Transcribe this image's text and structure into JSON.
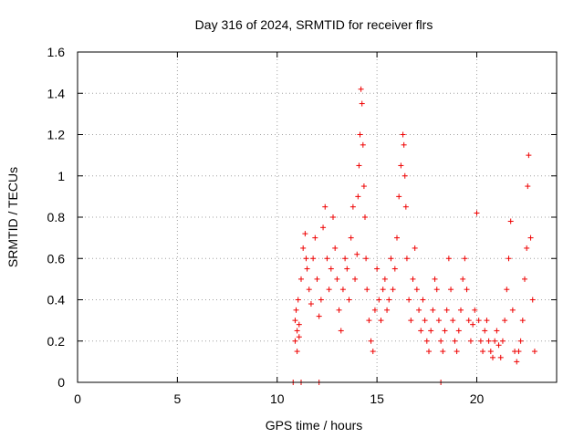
{
  "chart_data": {
    "type": "scatter",
    "title": "Day 316 of 2024, SRMTID for receiver flrs",
    "xlabel": "GPS time / hours",
    "ylabel": "SRMTID / TECUs",
    "xlim": [
      0,
      24
    ],
    "ylim": [
      0,
      1.6
    ],
    "xticks": [
      "0",
      "5",
      "10",
      "15",
      "20"
    ],
    "yticks": [
      "0",
      "0.2",
      "0.4",
      "0.6",
      "0.8",
      "1",
      "1.2",
      "1.4",
      "1.6"
    ],
    "grid": true,
    "marker": "plus",
    "color": "#ee0000",
    "series": [
      {
        "name": "SRMTID",
        "x": [
          10.8,
          11.2,
          12.1,
          18.2,
          10.9,
          10.9,
          11.0,
          11.0,
          11.1,
          10.95,
          11.05,
          11.1,
          11.2,
          11.3,
          11.4,
          11.45,
          11.5,
          11.6,
          11.7,
          11.8,
          11.9,
          12.0,
          12.1,
          12.2,
          12.3,
          12.4,
          12.5,
          12.6,
          12.7,
          12.8,
          12.9,
          13.0,
          13.1,
          13.2,
          13.3,
          13.4,
          13.5,
          13.6,
          13.7,
          13.8,
          13.9,
          14.0,
          14.05,
          14.1,
          14.15,
          14.2,
          14.25,
          14.3,
          14.35,
          14.4,
          14.45,
          14.5,
          14.6,
          14.7,
          14.8,
          14.9,
          15.0,
          15.1,
          15.2,
          15.3,
          15.4,
          15.5,
          15.6,
          15.7,
          15.8,
          15.9,
          16.0,
          16.1,
          16.2,
          16.3,
          16.35,
          16.4,
          16.45,
          16.5,
          16.6,
          16.7,
          16.8,
          16.9,
          17.0,
          17.1,
          17.2,
          17.3,
          17.4,
          17.5,
          17.6,
          17.7,
          17.8,
          17.9,
          18.0,
          18.1,
          18.2,
          18.3,
          18.4,
          18.5,
          18.6,
          18.7,
          18.8,
          18.9,
          19.0,
          19.1,
          19.2,
          19.3,
          19.4,
          19.5,
          19.6,
          19.7,
          19.8,
          19.9,
          20.0,
          20.1,
          20.2,
          20.3,
          20.4,
          20.5,
          20.6,
          20.7,
          20.8,
          20.9,
          21.0,
          21.1,
          21.2,
          21.3,
          21.4,
          21.5,
          21.6,
          21.7,
          21.8,
          21.9,
          22.0,
          22.1,
          22.2,
          22.3,
          22.4,
          22.5,
          22.55,
          22.6,
          22.7,
          22.8,
          22.9
        ],
        "y": [
          0.0,
          0.0,
          0.0,
          0.0,
          0.2,
          0.3,
          0.15,
          0.25,
          0.22,
          0.35,
          0.4,
          0.28,
          0.5,
          0.65,
          0.72,
          0.6,
          0.55,
          0.45,
          0.38,
          0.6,
          0.7,
          0.5,
          0.32,
          0.4,
          0.75,
          0.85,
          0.6,
          0.45,
          0.55,
          0.8,
          0.65,
          0.5,
          0.35,
          0.25,
          0.45,
          0.6,
          0.55,
          0.4,
          0.7,
          0.85,
          0.5,
          0.62,
          0.9,
          1.05,
          1.2,
          1.42,
          1.35,
          1.15,
          0.95,
          0.8,
          0.6,
          0.45,
          0.3,
          0.2,
          0.15,
          0.35,
          0.55,
          0.4,
          0.3,
          0.45,
          0.5,
          0.35,
          0.4,
          0.6,
          0.45,
          0.55,
          0.7,
          0.9,
          1.05,
          1.2,
          1.15,
          1.0,
          0.85,
          0.6,
          0.4,
          0.3,
          0.5,
          0.65,
          0.45,
          0.35,
          0.25,
          0.4,
          0.3,
          0.2,
          0.15,
          0.25,
          0.35,
          0.5,
          0.45,
          0.3,
          0.2,
          0.15,
          0.25,
          0.35,
          0.6,
          0.45,
          0.3,
          0.2,
          0.15,
          0.25,
          0.35,
          0.5,
          0.6,
          0.45,
          0.3,
          0.2,
          0.28,
          0.35,
          0.82,
          0.3,
          0.2,
          0.15,
          0.25,
          0.3,
          0.2,
          0.15,
          0.12,
          0.2,
          0.25,
          0.18,
          0.12,
          0.2,
          0.3,
          0.45,
          0.6,
          0.78,
          0.35,
          0.15,
          0.1,
          0.15,
          0.2,
          0.3,
          0.5,
          0.65,
          0.95,
          1.1,
          0.7,
          0.4,
          0.15
        ]
      }
    ]
  }
}
